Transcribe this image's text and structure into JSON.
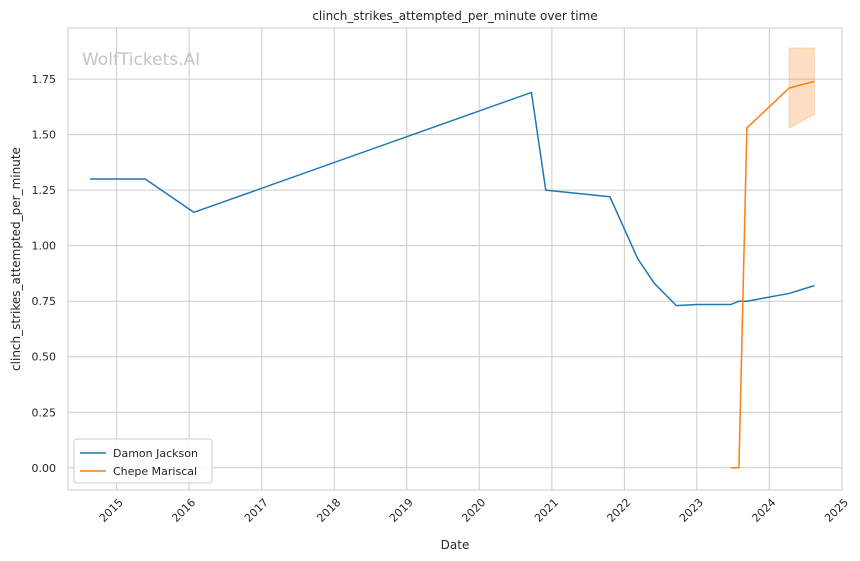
{
  "chart_data": {
    "type": "line",
    "title": "clinch_strikes_attempted_per_minute over time",
    "xlabel": "Date",
    "ylabel": "clinch_strikes_attempted_per_minute",
    "watermark": "WolfTickets.AI",
    "x_ticks": [
      "2015",
      "2016",
      "2017",
      "2018",
      "2019",
      "2020",
      "2021",
      "2022",
      "2023",
      "2024",
      "2025"
    ],
    "y_ticks": [
      "0.00",
      "0.25",
      "0.50",
      "0.75",
      "1.00",
      "1.25",
      "1.50",
      "1.75"
    ],
    "xlim": [
      "2014-05-01",
      "2025-01-01"
    ],
    "ylim": [
      -0.1,
      1.98
    ],
    "grid": true,
    "legend_position": "lower-left",
    "series": [
      {
        "name": "Damon Jackson",
        "color": "#1f77b4",
        "points": [
          {
            "date": "2014-08-20",
            "value": 1.3
          },
          {
            "date": "2015-05-25",
            "value": 1.3
          },
          {
            "date": "2016-01-25",
            "value": 1.15
          },
          {
            "date": "2020-09-20",
            "value": 1.69
          },
          {
            "date": "2020-12-01",
            "value": 1.25
          },
          {
            "date": "2021-10-20",
            "value": 1.22
          },
          {
            "date": "2022-03-10",
            "value": 0.94
          },
          {
            "date": "2022-06-01",
            "value": 0.83
          },
          {
            "date": "2022-09-20",
            "value": 0.73
          },
          {
            "date": "2023-01-01",
            "value": 0.735
          },
          {
            "date": "2023-06-20",
            "value": 0.735
          },
          {
            "date": "2023-08-01",
            "value": 0.75
          },
          {
            "date": "2023-09-10",
            "value": 0.75
          },
          {
            "date": "2024-04-10",
            "value": 0.785
          },
          {
            "date": "2024-08-15",
            "value": 0.82
          }
        ]
      },
      {
        "name": "Chepe Mariscal",
        "color": "#ff7f0e",
        "points": [
          {
            "date": "2023-06-20",
            "value": 0.0
          },
          {
            "date": "2023-08-01",
            "value": 0.0
          },
          {
            "date": "2023-09-10",
            "value": 1.53
          },
          {
            "date": "2024-04-10",
            "value": 1.71
          },
          {
            "date": "2024-08-15",
            "value": 1.74
          }
        ],
        "band": [
          {
            "date": "2024-04-10",
            "low": 1.53,
            "high": 1.89
          },
          {
            "date": "2024-08-15",
            "low": 1.59,
            "high": 1.89
          }
        ]
      }
    ]
  }
}
